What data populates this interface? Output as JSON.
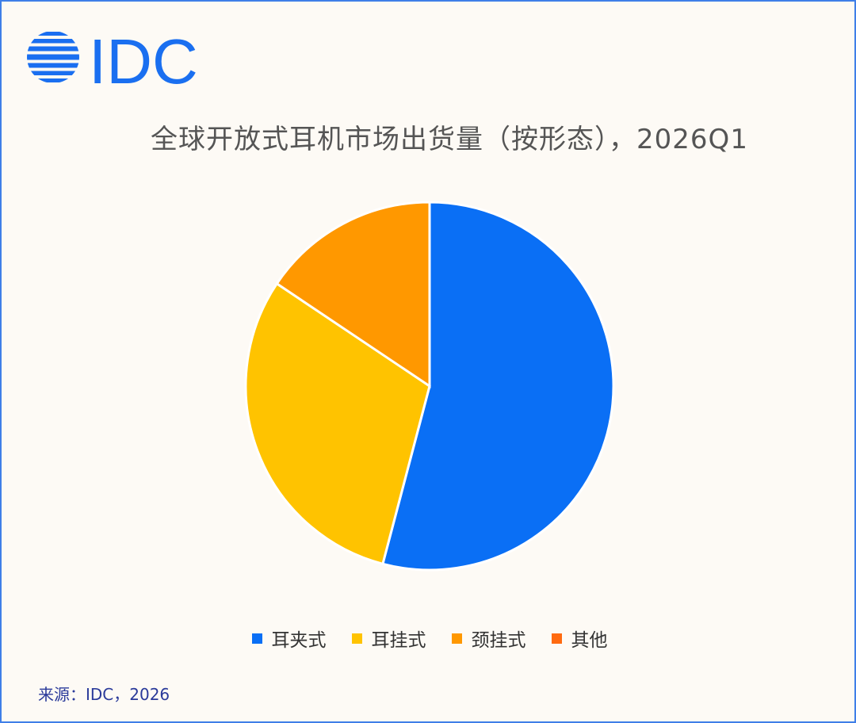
{
  "logo": {
    "text": "IDC",
    "color": "#1a6ff0"
  },
  "chart_data": {
    "type": "pie",
    "title": "全球开放式耳机市场出货量（按形态），2026Q1",
    "categories": [
      "耳夹式",
      "耳挂式",
      "颈挂式",
      "其他"
    ],
    "values": [
      54.1,
      30.3,
      15.6,
      0.0
    ],
    "unit": "%",
    "colors": [
      "#0a6ff5",
      "#ffc300",
      "#ff9800",
      "#ff6a10"
    ],
    "legend_position": "bottom"
  },
  "source": "来源：IDC，2026"
}
